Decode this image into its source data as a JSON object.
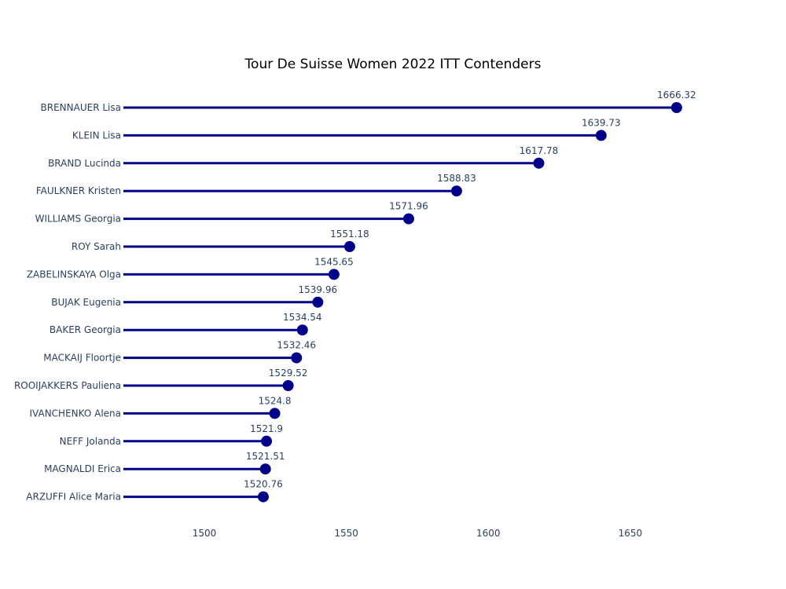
{
  "chart_data": {
    "type": "lollipop",
    "title": "Tour De Suisse Women 2022 ITT Contenders",
    "xlabel": "",
    "ylabel": "",
    "categories": [
      "BRENNAUER Lisa",
      "KLEIN Lisa",
      "BRAND Lucinda",
      "FAULKNER Kristen",
      "WILLIAMS Georgia",
      "ROY Sarah",
      "ZABELINSKAYA Olga",
      "BUJAK Eugenia",
      "BAKER Georgia",
      "MACKAIJ Floortje",
      "ROOIJAKKERS Pauliena",
      "IVANCHENKO Alena",
      "NEFF Jolanda",
      "MAGNALDI Erica",
      "ARZUFFI Alice Maria"
    ],
    "values": [
      1666.32,
      1639.73,
      1617.78,
      1588.83,
      1571.96,
      1551.18,
      1545.65,
      1539.96,
      1534.54,
      1532.46,
      1529.52,
      1524.8,
      1521.9,
      1521.51,
      1520.76
    ],
    "value_labels": [
      "1666.32",
      "1639.73",
      "1617.78",
      "1588.83",
      "1571.96",
      "1551.18",
      "1545.65",
      "1539.96",
      "1534.54",
      "1532.46",
      "1529.52",
      "1524.8",
      "1521.9",
      "1521.51",
      "1520.76"
    ],
    "x_ticks": [
      1500,
      1550,
      1600,
      1650
    ],
    "x_tick_labels": [
      "1500",
      "1550",
      "1600",
      "1650"
    ],
    "xlim": [
      1471.5,
      1673
    ],
    "grid": false,
    "legend": "none",
    "colors": {
      "stem": "#00008b",
      "marker": "#00008b",
      "text": "#2a3f5f",
      "title": "#000000"
    }
  }
}
